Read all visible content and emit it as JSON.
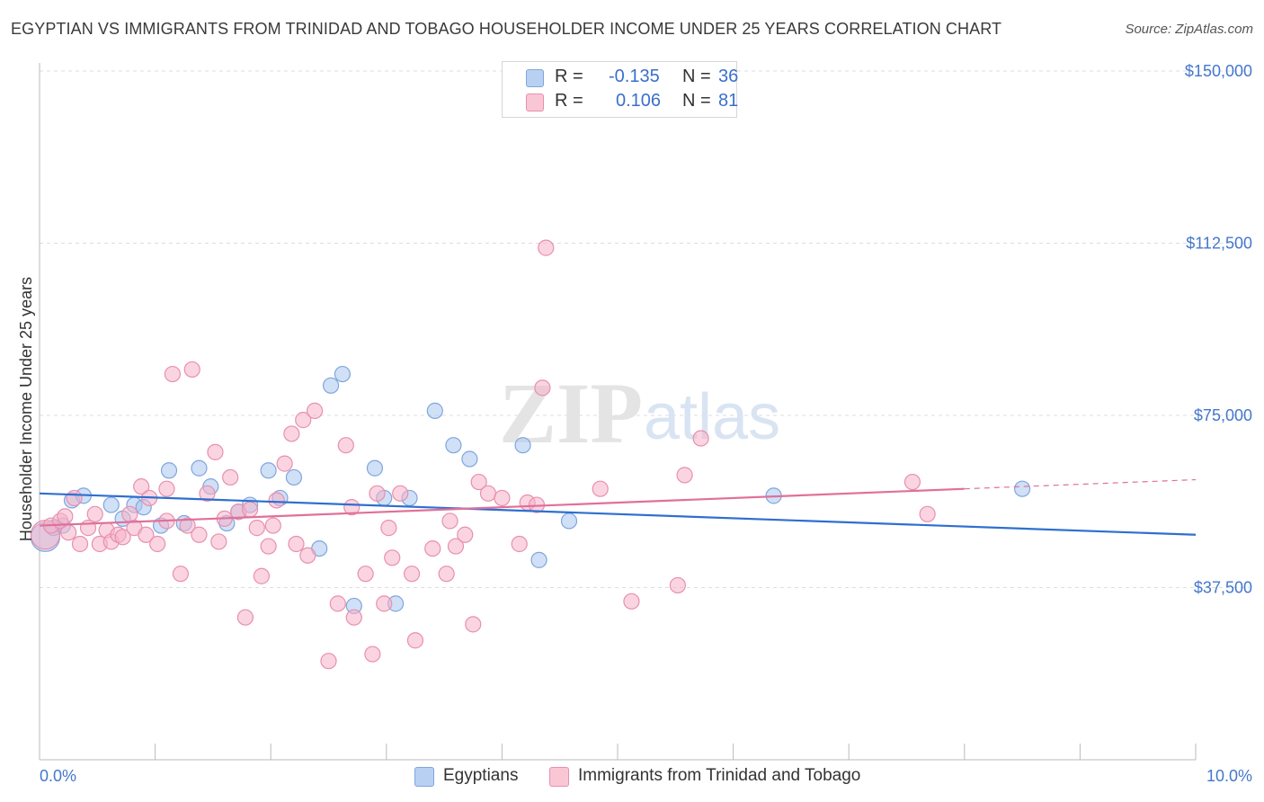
{
  "title": "EGYPTIAN VS IMMIGRANTS FROM TRINIDAD AND TOBAGO HOUSEHOLDER INCOME UNDER 25 YEARS CORRELATION CHART",
  "source": "Source: ZipAtlas.com",
  "watermark": "ZIPatlas",
  "colors": {
    "blue_fill": "#a9c6ef",
    "blue_stroke": "#7fa6dd",
    "blue_line": "#2f6fcf",
    "pink_fill": "#f6b3c9",
    "pink_stroke": "#e98fad",
    "pink_line": "#e0709a",
    "tick_text": "#4477cc",
    "grid": "#dddddd"
  },
  "legend": {
    "r_label": "R =",
    "n_label": "N =",
    "rows": [
      {
        "r": "-0.135",
        "n": "36"
      },
      {
        "r": "0.106",
        "n": "81"
      }
    ]
  },
  "chart_data": {
    "type": "scatter",
    "title": "EGYPTIAN VS IMMIGRANTS FROM TRINIDAD AND TOBAGO HOUSEHOLDER INCOME UNDER 25 YEARS CORRELATION CHART",
    "xlabel": "",
    "ylabel": "Householder Income Under 25 years",
    "xlim": [
      0,
      10
    ],
    "ylim": [
      0,
      157000
    ],
    "x_tick_labels": [
      "0.0%",
      "10.0%"
    ],
    "y_ticks": [
      37500,
      75000,
      112500,
      150000
    ],
    "y_tick_labels": [
      "$37,500",
      "$75,000",
      "$112,500",
      "$150,000"
    ],
    "grid": true,
    "legend_position": "top-center",
    "series": [
      {
        "name": "Egyptians",
        "trend": {
          "x": [
            0,
            10
          ],
          "y": [
            58000,
            49000
          ]
        },
        "points": [
          {
            "x": 0.05,
            "y": 48500,
            "big": true
          },
          {
            "x": 0.12,
            "y": 50500
          },
          {
            "x": 0.2,
            "y": 51000
          },
          {
            "x": 0.28,
            "y": 56500
          },
          {
            "x": 0.38,
            "y": 57500
          },
          {
            "x": 0.62,
            "y": 55500
          },
          {
            "x": 0.72,
            "y": 52500
          },
          {
            "x": 0.82,
            "y": 55500
          },
          {
            "x": 0.9,
            "y": 55000
          },
          {
            "x": 1.05,
            "y": 51000
          },
          {
            "x": 1.12,
            "y": 63000
          },
          {
            "x": 1.25,
            "y": 51500
          },
          {
            "x": 1.38,
            "y": 63500
          },
          {
            "x": 1.48,
            "y": 59500
          },
          {
            "x": 1.62,
            "y": 51500
          },
          {
            "x": 1.72,
            "y": 54000
          },
          {
            "x": 1.82,
            "y": 55500
          },
          {
            "x": 1.98,
            "y": 63000
          },
          {
            "x": 2.08,
            "y": 57000
          },
          {
            "x": 2.2,
            "y": 61500
          },
          {
            "x": 2.42,
            "y": 46000
          },
          {
            "x": 2.52,
            "y": 81500
          },
          {
            "x": 2.62,
            "y": 84000
          },
          {
            "x": 2.72,
            "y": 33500
          },
          {
            "x": 2.9,
            "y": 63500
          },
          {
            "x": 2.98,
            "y": 57000
          },
          {
            "x": 3.08,
            "y": 34000
          },
          {
            "x": 3.2,
            "y": 57000
          },
          {
            "x": 3.42,
            "y": 76000
          },
          {
            "x": 3.58,
            "y": 68500
          },
          {
            "x": 3.72,
            "y": 65500
          },
          {
            "x": 4.18,
            "y": 68500
          },
          {
            "x": 4.32,
            "y": 43500
          },
          {
            "x": 4.58,
            "y": 52000
          },
          {
            "x": 6.35,
            "y": 57500
          },
          {
            "x": 8.5,
            "y": 59000
          }
        ]
      },
      {
        "name": "Immigrants from Trinidad and Tobago",
        "trend": {
          "x": [
            0,
            8
          ],
          "y": [
            51000,
            59000
          ]
        },
        "points": [
          {
            "x": 0.05,
            "y": 49000,
            "big": true
          },
          {
            "x": 0.1,
            "y": 51000
          },
          {
            "x": 0.18,
            "y": 52000
          },
          {
            "x": 0.25,
            "y": 49500
          },
          {
            "x": 0.3,
            "y": 57000
          },
          {
            "x": 0.35,
            "y": 47000
          },
          {
            "x": 0.42,
            "y": 50500
          },
          {
            "x": 0.48,
            "y": 53500
          },
          {
            "x": 0.52,
            "y": 47000
          },
          {
            "x": 0.58,
            "y": 50000
          },
          {
            "x": 0.62,
            "y": 47500
          },
          {
            "x": 0.68,
            "y": 49000
          },
          {
            "x": 0.72,
            "y": 48500
          },
          {
            "x": 0.78,
            "y": 53500
          },
          {
            "x": 0.82,
            "y": 50500
          },
          {
            "x": 0.88,
            "y": 59500
          },
          {
            "x": 0.92,
            "y": 49000
          },
          {
            "x": 1.02,
            "y": 47000
          },
          {
            "x": 1.1,
            "y": 52000
          },
          {
            "x": 1.15,
            "y": 84000
          },
          {
            "x": 1.22,
            "y": 40500
          },
          {
            "x": 1.28,
            "y": 51000
          },
          {
            "x": 1.32,
            "y": 85000
          },
          {
            "x": 1.38,
            "y": 49000
          },
          {
            "x": 1.45,
            "y": 58000
          },
          {
            "x": 1.52,
            "y": 67000
          },
          {
            "x": 1.6,
            "y": 52500
          },
          {
            "x": 1.65,
            "y": 61500
          },
          {
            "x": 1.72,
            "y": 54000
          },
          {
            "x": 1.78,
            "y": 31000
          },
          {
            "x": 1.82,
            "y": 54500
          },
          {
            "x": 1.88,
            "y": 50500
          },
          {
            "x": 1.92,
            "y": 40000
          },
          {
            "x": 1.98,
            "y": 46500
          },
          {
            "x": 2.05,
            "y": 56500
          },
          {
            "x": 2.12,
            "y": 64500
          },
          {
            "x": 2.18,
            "y": 71000
          },
          {
            "x": 2.22,
            "y": 47000
          },
          {
            "x": 2.28,
            "y": 74000
          },
          {
            "x": 2.32,
            "y": 44500
          },
          {
            "x": 2.38,
            "y": 76000
          },
          {
            "x": 2.5,
            "y": 21500
          },
          {
            "x": 2.58,
            "y": 34000
          },
          {
            "x": 2.65,
            "y": 68500
          },
          {
            "x": 2.72,
            "y": 31000
          },
          {
            "x": 2.82,
            "y": 40500
          },
          {
            "x": 2.88,
            "y": 23000
          },
          {
            "x": 2.92,
            "y": 58000
          },
          {
            "x": 2.98,
            "y": 34000
          },
          {
            "x": 3.02,
            "y": 50500
          },
          {
            "x": 3.12,
            "y": 58000
          },
          {
            "x": 3.22,
            "y": 40500
          },
          {
            "x": 3.25,
            "y": 26000
          },
          {
            "x": 3.4,
            "y": 46000
          },
          {
            "x": 3.52,
            "y": 40500
          },
          {
            "x": 3.55,
            "y": 52000
          },
          {
            "x": 3.6,
            "y": 46500
          },
          {
            "x": 3.75,
            "y": 29500
          },
          {
            "x": 3.8,
            "y": 60500
          },
          {
            "x": 3.88,
            "y": 58000
          },
          {
            "x": 4.0,
            "y": 57000
          },
          {
            "x": 4.15,
            "y": 47000
          },
          {
            "x": 4.22,
            "y": 56000
          },
          {
            "x": 4.3,
            "y": 55500
          },
          {
            "x": 4.35,
            "y": 81000
          },
          {
            "x": 4.38,
            "y": 111500
          },
          {
            "x": 4.85,
            "y": 59000
          },
          {
            "x": 5.12,
            "y": 34500
          },
          {
            "x": 5.52,
            "y": 38000
          },
          {
            "x": 5.58,
            "y": 62000
          },
          {
            "x": 5.72,
            "y": 70000
          },
          {
            "x": 7.55,
            "y": 60500
          },
          {
            "x": 7.68,
            "y": 53500
          },
          {
            "x": 2.02,
            "y": 51000
          },
          {
            "x": 1.55,
            "y": 47500
          },
          {
            "x": 0.95,
            "y": 57000
          },
          {
            "x": 3.68,
            "y": 49000
          },
          {
            "x": 0.22,
            "y": 53000
          },
          {
            "x": 2.7,
            "y": 55000
          },
          {
            "x": 1.1,
            "y": 59000
          },
          {
            "x": 3.05,
            "y": 44000
          }
        ]
      }
    ]
  }
}
